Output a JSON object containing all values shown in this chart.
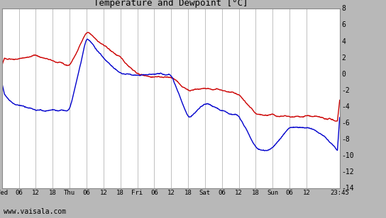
{
  "title": "Temperature and Dewpoint [°C]",
  "ylim": [
    -14,
    8
  ],
  "ytick_step": 2,
  "fig_bg_color": "#b8b8b8",
  "plot_bg_color": "#ffffff",
  "right_panel_color": "#c0c0c0",
  "grid_color": "#c0c0c0",
  "temp_color": "#cc0000",
  "dewp_color": "#0000cc",
  "line_width": 1.0,
  "x_tick_labels": [
    "Wed",
    "06",
    "12",
    "18",
    "Thu",
    "06",
    "12",
    "18",
    "Fri",
    "06",
    "12",
    "18",
    "Sat",
    "06",
    "12",
    "18",
    "Sun",
    "06",
    "12",
    "23:45"
  ],
  "x_tick_positions": [
    0,
    6,
    12,
    18,
    24,
    30,
    36,
    42,
    48,
    54,
    60,
    66,
    72,
    78,
    84,
    90,
    96,
    102,
    108,
    119.75
  ],
  "watermark": "www.vaisala.com",
  "x_total_hours": 119.75,
  "figsize": [
    5.44,
    3.08
  ],
  "dpi": 100
}
